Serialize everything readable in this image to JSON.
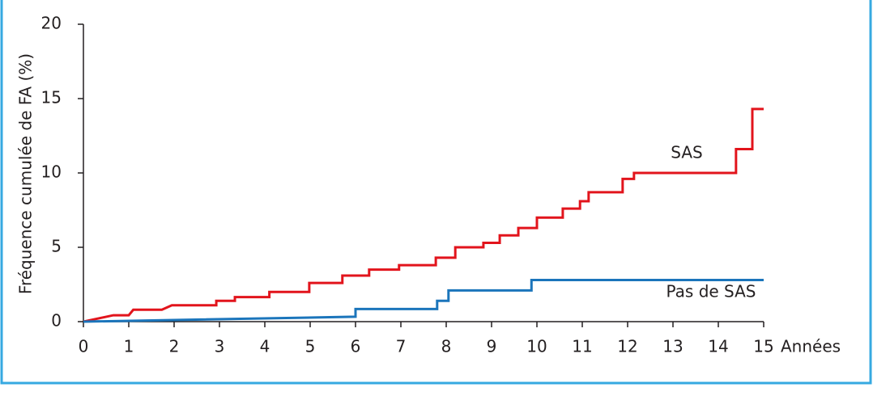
{
  "chart_data": {
    "type": "line",
    "y_label": "Fréquence cumulée de FA (%)",
    "x_label": "Années",
    "xlim": [
      0,
      15
    ],
    "xticks": [
      0,
      1,
      2,
      3,
      4,
      5,
      6,
      7,
      8,
      9,
      10,
      11,
      12,
      13,
      14,
      15
    ],
    "ylim": [
      0,
      20
    ],
    "yticks": [
      0,
      5,
      10,
      15,
      20
    ],
    "series": [
      {
        "name": "SAS",
        "color": "#e2141c",
        "x": [
          0,
          0.66,
          1.0,
          1.1,
          1.73,
          1.95,
          2.93,
          2.93,
          3.34,
          3.34,
          4.1,
          4.1,
          4.98,
          4.98,
          5.71,
          5.71,
          6.3,
          6.3,
          6.96,
          6.96,
          7.77,
          7.77,
          8.2,
          8.2,
          8.82,
          8.82,
          9.18,
          9.18,
          9.59,
          9.59,
          10.0,
          10.0,
          10.57,
          10.57,
          10.95,
          10.95,
          11.14,
          11.14,
          11.89,
          11.89,
          12.14,
          12.14,
          14.39,
          14.39,
          14.75,
          14.75,
          15
        ],
        "values": [
          0,
          0.43,
          0.43,
          0.8,
          0.8,
          1.1,
          1.1,
          1.4,
          1.4,
          1.65,
          1.65,
          2.0,
          2.0,
          2.6,
          2.6,
          3.1,
          3.1,
          3.5,
          3.5,
          3.8,
          3.8,
          4.3,
          4.3,
          5.0,
          5.0,
          5.3,
          5.3,
          5.8,
          5.8,
          6.3,
          6.3,
          7.0,
          7.0,
          7.6,
          7.6,
          8.1,
          8.1,
          8.7,
          8.7,
          9.6,
          9.6,
          10.0,
          10.0,
          11.6,
          11.6,
          14.3,
          14.3
        ]
      },
      {
        "name": "Pas de SAS",
        "color": "#1b75bb",
        "x": [
          0,
          6,
          6,
          7.8,
          7.8,
          8.05,
          8.05,
          9.88,
          9.88,
          15
        ],
        "values": [
          0,
          0.33,
          0.85,
          0.85,
          1.4,
          1.4,
          2.1,
          2.1,
          2.8,
          2.8
        ]
      }
    ]
  }
}
